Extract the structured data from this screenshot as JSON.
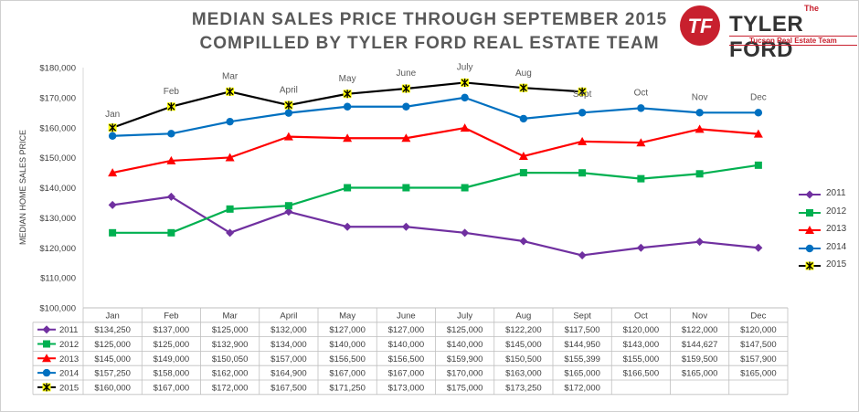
{
  "title_line1": "MEDIAN SALES PRICE THROUGH SEPTEMBER 2015",
  "title_line2": "COMPILLED BY TYLER FORD REAL ESTATE TEAM",
  "logo": {
    "mark": "TF",
    "the": "The",
    "name": "TYLER FORD",
    "tagline": "Tucson Real Estate Team"
  },
  "chart_data": {
    "type": "line",
    "title": "MEDIAN SALES PRICE THROUGH SEPTEMBER 2015",
    "subtitle": "COMPILLED BY TYLER FORD REAL ESTATE TEAM",
    "ylabel": "MEDIAN HOME SALES PRICE",
    "xlabel": "",
    "ylim": [
      100000,
      180000
    ],
    "yticks": [
      "$100,000",
      "$110,000",
      "$120,000",
      "$130,000",
      "$140,000",
      "$150,000",
      "$160,000",
      "$170,000",
      "$180,000"
    ],
    "categories": [
      "Jan",
      "Feb",
      "Mar",
      "April",
      "May",
      "June",
      "July",
      "Aug",
      "Sept",
      "Oct",
      "Nov",
      "Dec"
    ],
    "grid": false,
    "legend_placement": "right",
    "data_table": true,
    "series": [
      {
        "name": "2011",
        "color": "#7030a0",
        "marker": "diamond",
        "values": [
          134250,
          137000,
          125000,
          132000,
          127000,
          127000,
          125000,
          122200,
          117500,
          120000,
          122000,
          120000
        ],
        "labels": [
          "$134,250",
          "$137,000",
          "$125,000",
          "$132,000",
          "$127,000",
          "$127,000",
          "$125,000",
          "$122,200",
          "$117,500",
          "$120,000",
          "$122,000",
          "$120,000"
        ]
      },
      {
        "name": "2012",
        "color": "#00b050",
        "marker": "square",
        "values": [
          125000,
          125000,
          132900,
          134000,
          140000,
          140000,
          140000,
          145000,
          144950,
          143000,
          144627,
          147500
        ],
        "labels": [
          "$125,000",
          "$125,000",
          "$132,900",
          "$134,000",
          "$140,000",
          "$140,000",
          "$140,000",
          "$145,000",
          "$144,950",
          "$143,000",
          "$144,627",
          "$147,500"
        ]
      },
      {
        "name": "2013",
        "color": "#ff0000",
        "marker": "triangle",
        "values": [
          145000,
          149000,
          150050,
          157000,
          156500,
          156500,
          159900,
          150500,
          155399,
          155000,
          159500,
          157900
        ],
        "labels": [
          "$145,000",
          "$149,000",
          "$150,050",
          "$157,000",
          "$156,500",
          "$156,500",
          "$159,900",
          "$150,500",
          "$155,399",
          "$155,000",
          "$159,500",
          "$157,900"
        ]
      },
      {
        "name": "2014",
        "color": "#0070c0",
        "marker": "circle",
        "values": [
          157250,
          158000,
          162000,
          164900,
          167000,
          167000,
          170000,
          163000,
          165000,
          166500,
          165000,
          165000
        ],
        "labels": [
          "$157,250",
          "$158,000",
          "$162,000",
          "$164,900",
          "$167,000",
          "$167,000",
          "$170,000",
          "$163,000",
          "$165,000",
          "$166,500",
          "$165,000",
          "$165,000"
        ]
      },
      {
        "name": "2015",
        "color": "#000000",
        "marker": "star",
        "marker_fill": "#ffff00",
        "values": [
          160000,
          167000,
          172000,
          167500,
          171250,
          173000,
          175000,
          173250,
          172000,
          null,
          null,
          null
        ],
        "labels": [
          "$160,000",
          "$167,000",
          "$172,000",
          "$167,500",
          "$171,250",
          "$173,000",
          "$175,000",
          "$173,250",
          "$172,000",
          "",
          "",
          ""
        ]
      }
    ],
    "annotations": [
      {
        "text": "Jan",
        "x": "Jan",
        "y": 163500
      },
      {
        "text": "Feb",
        "x": "Feb",
        "y": 171200
      },
      {
        "text": "Mar",
        "x": "Mar",
        "y": 176200
      },
      {
        "text": "April",
        "x": "April",
        "y": 171700
      },
      {
        "text": "May",
        "x": "May",
        "y": 175500
      },
      {
        "text": "June",
        "x": "June",
        "y": 177200
      },
      {
        "text": "July",
        "x": "July",
        "y": 179200
      },
      {
        "text": "Aug",
        "x": "Aug",
        "y": 177300
      },
      {
        "text": "Sept",
        "x": "Sept",
        "y": 170200
      },
      {
        "text": "Oct",
        "x": "Oct",
        "y": 170700
      },
      {
        "text": "Nov",
        "x": "Nov",
        "y": 169200
      },
      {
        "text": "Dec",
        "x": "Dec",
        "y": 169200
      }
    ]
  }
}
